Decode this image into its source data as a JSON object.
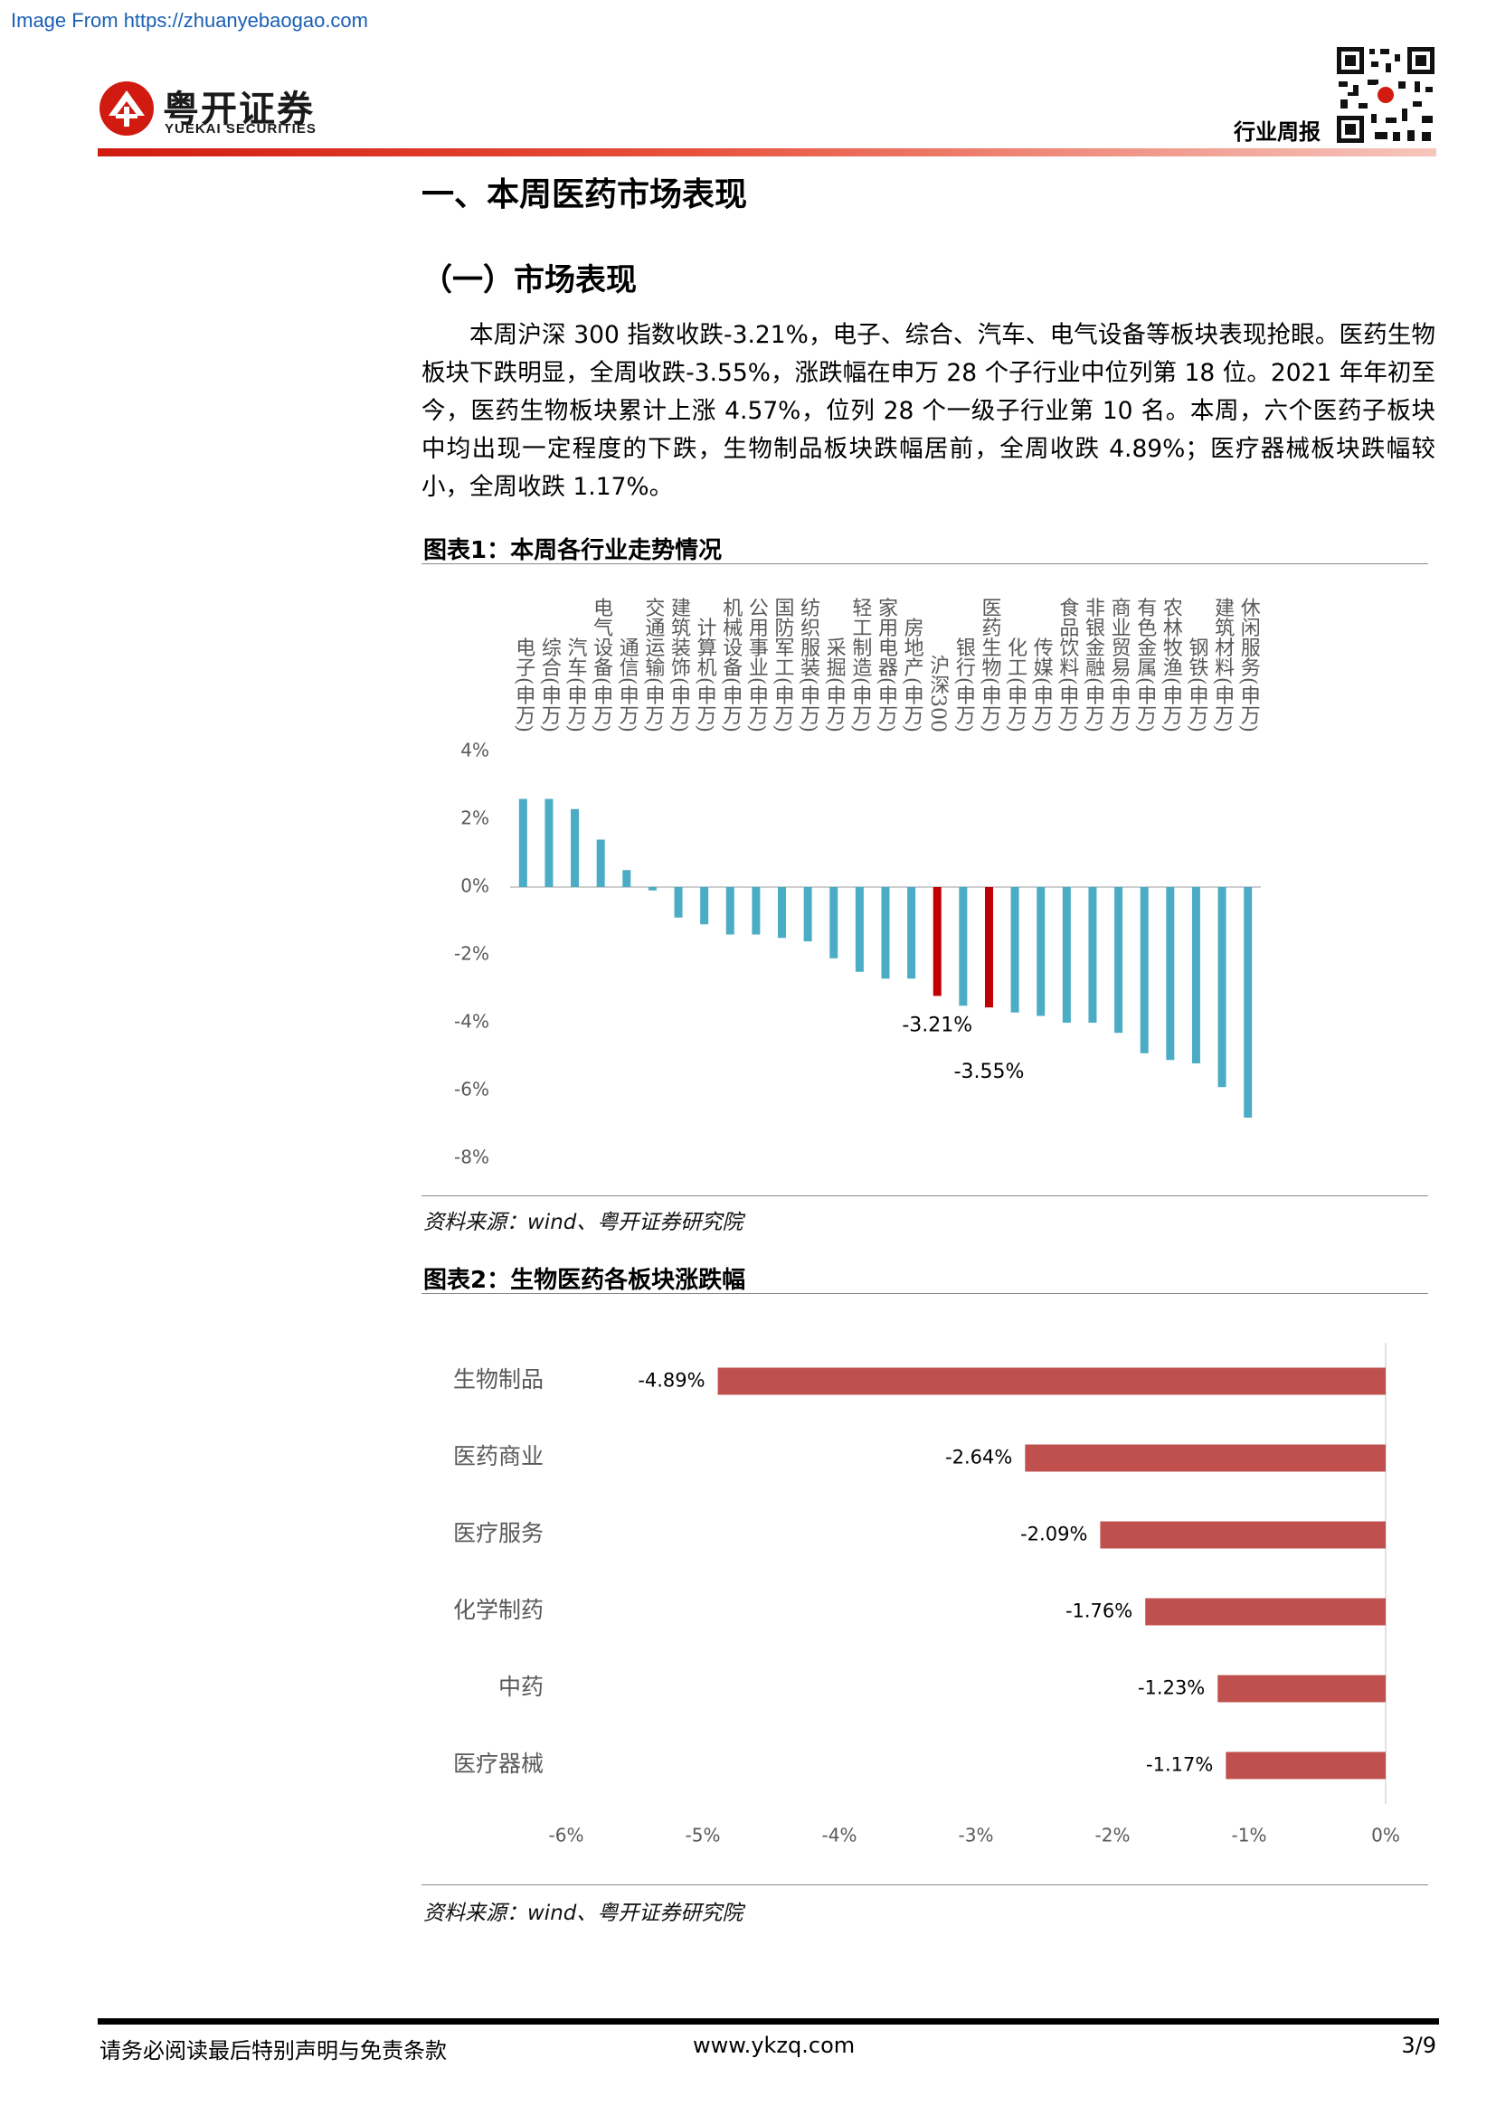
{
  "header": {
    "source_note": "Image From https://zhuanyebaogao.com",
    "logo_cn": "粤开证券",
    "logo_en": "YUEKAI SECURITIES",
    "report_type": "行业周报"
  },
  "section_title": "一、本周医药市场表现",
  "subsection_title": "（一）市场表现",
  "paragraph": "本周沪深 300 指数收跌-3.21%，电子、综合、汽车、电气设备等板块表现抢眼。医药生物板块下跌明显，全周收跌-3.55%，涨跌幅在申万 28 个子行业中位列第 18 位。2021 年年初至今，医药生物板块累计上涨 4.57%，位列 28 个一级子行业第 10 名。本周，六个医药子板块中均出现一定程度的下跌，生物制品板块跌幅居前，全周收跌 4.89%；医疗器械板块跌幅较小，全周收跌 1.17%。",
  "chart_data": [
    {
      "type": "bar",
      "title": "图表1：本周各行业走势情况",
      "source": "资料来源：wind、粤开证券研究院",
      "categories": [
        "电子(申万)",
        "综合(申万)",
        "汽车(申万)",
        "电气设备(申万)",
        "通信(申万)",
        "交通运输(申万)",
        "建筑装饰(申万)",
        "计算机(申万)",
        "机械设备(申万)",
        "公用事业(申万)",
        "国防军工(申万)",
        "纺织服装(申万)",
        "采掘(申万)",
        "轻工制造(申万)",
        "家用电器(申万)",
        "房地产(申万)",
        "沪深300",
        "银行(申万)",
        "医药生物(申万)",
        "化工(申万)",
        "传媒(申万)",
        "食品饮料(申万)",
        "非银金融(申万)",
        "商业贸易(申万)",
        "有色金属(申万)",
        "农林牧渔(申万)",
        "钢铁(申万)",
        "建筑材料(申万)",
        "休闲服务(申万)"
      ],
      "values": [
        2.6,
        2.6,
        2.3,
        1.4,
        0.5,
        -0.1,
        -0.9,
        -1.1,
        -1.4,
        -1.4,
        -1.5,
        -1.6,
        -2.1,
        -2.5,
        -2.7,
        -2.7,
        -3.21,
        -3.5,
        -3.55,
        -3.7,
        -3.8,
        -4.0,
        -4.0,
        -4.3,
        -4.9,
        -5.1,
        -5.2,
        -5.9,
        -6.8
      ],
      "value_labels": [
        null,
        null,
        null,
        null,
        null,
        null,
        null,
        null,
        null,
        null,
        null,
        null,
        null,
        null,
        null,
        null,
        "-3.21%",
        null,
        "-3.55%",
        null,
        null,
        null,
        null,
        null,
        null,
        null,
        null,
        null,
        null
      ],
      "colors": [
        "#4bacc6",
        "#4bacc6",
        "#4bacc6",
        "#4bacc6",
        "#4bacc6",
        "#4bacc6",
        "#4bacc6",
        "#4bacc6",
        "#4bacc6",
        "#4bacc6",
        "#4bacc6",
        "#4bacc6",
        "#4bacc6",
        "#4bacc6",
        "#4bacc6",
        "#4bacc6",
        "#c00000",
        "#4bacc6",
        "#c00000",
        "#4bacc6",
        "#4bacc6",
        "#4bacc6",
        "#4bacc6",
        "#4bacc6",
        "#4bacc6",
        "#4bacc6",
        "#4bacc6",
        "#4bacc6",
        "#4bacc6"
      ],
      "ylim": [
        -8,
        4
      ],
      "yticks": [
        {
          "value": 4,
          "label": "4%"
        },
        {
          "value": 2,
          "label": "2%"
        },
        {
          "value": 0,
          "label": "0%"
        },
        {
          "value": -2,
          "label": "-2%"
        },
        {
          "value": -4,
          "label": "-4%"
        },
        {
          "value": -6,
          "label": "-6%"
        },
        {
          "value": -8,
          "label": "-8%"
        }
      ],
      "grid": false
    },
    {
      "type": "barh",
      "title": "图表2：生物医药各板块涨跌幅",
      "source": "资料来源：wind、粤开证券研究院",
      "categories": [
        "生物制品",
        "医药商业",
        "医疗服务",
        "化学制药",
        "中药",
        "医疗器械"
      ],
      "values": [
        -4.89,
        -2.64,
        -2.09,
        -1.76,
        -1.23,
        -1.17
      ],
      "value_labels": [
        "-4.89%",
        "-2.64%",
        "-2.09%",
        "-1.76%",
        "-1.23%",
        "-1.17%"
      ],
      "color": "#c0504d",
      "xlim": [
        -6,
        0
      ],
      "xticks": [
        {
          "value": -6,
          "label": "-6%"
        },
        {
          "value": -5,
          "label": "-5%"
        },
        {
          "value": -4,
          "label": "-4%"
        },
        {
          "value": -3,
          "label": "-3%"
        },
        {
          "value": -2,
          "label": "-2%"
        },
        {
          "value": -1,
          "label": "-1%"
        },
        {
          "value": 0,
          "label": "0%"
        }
      ],
      "grid": false
    }
  ],
  "footer": {
    "disclaimer": "请务必阅读最后特别声明与免责条款",
    "website": "www.ykzq.com",
    "page": "3/9"
  }
}
